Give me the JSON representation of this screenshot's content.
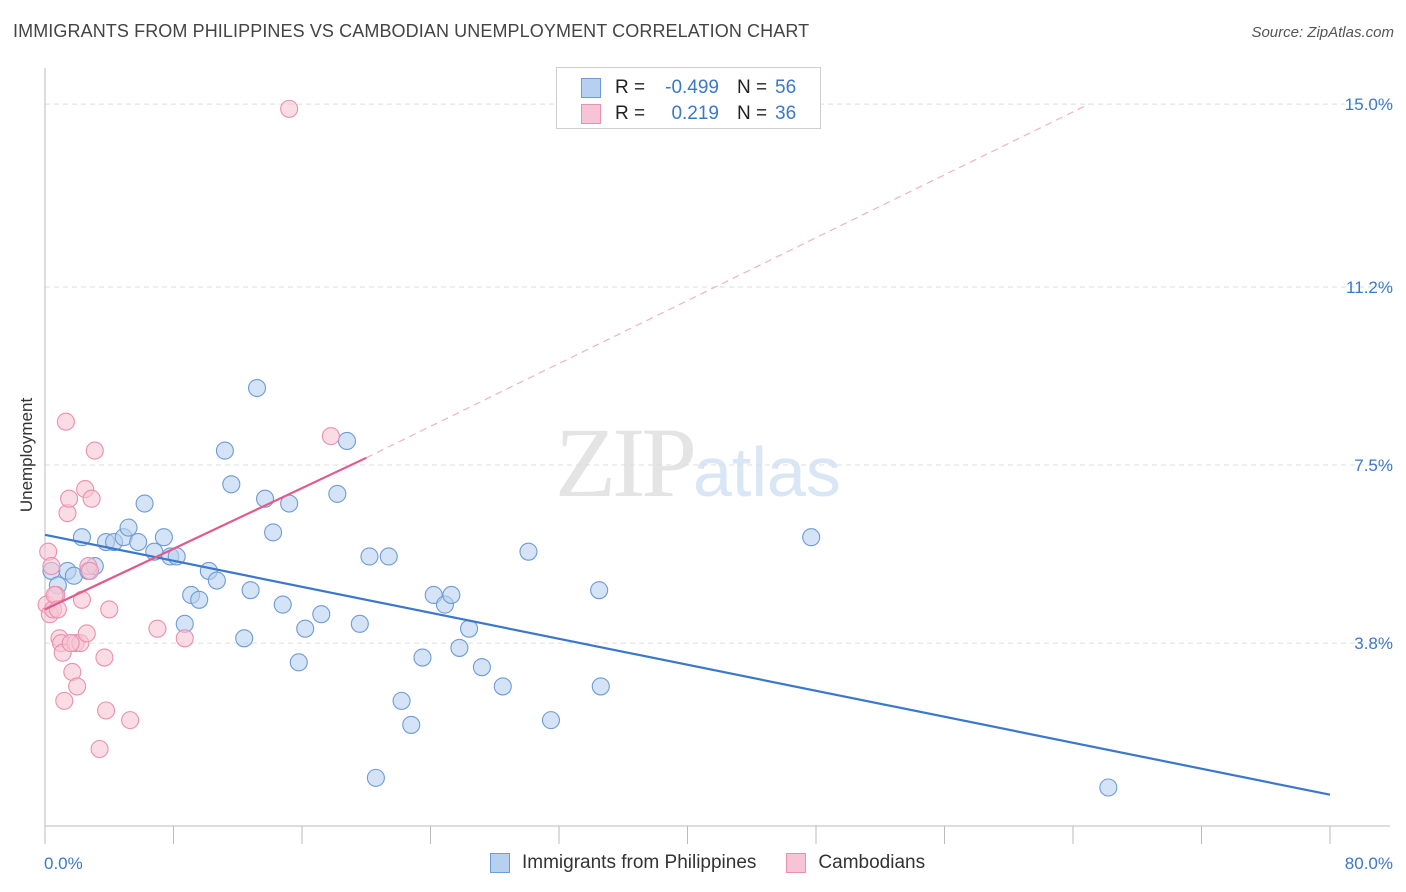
{
  "title": "IMMIGRANTS FROM PHILIPPINES VS CAMBODIAN UNEMPLOYMENT CORRELATION CHART",
  "source": "Source: ZipAtlas.com",
  "watermark": {
    "zip": "ZIP",
    "atlas": "atlas"
  },
  "colors": {
    "blue": "#3b78c9",
    "blue_fill": "#b7d0ef",
    "blue_stroke": "#6d9bd8",
    "pink": "#e05a8c",
    "pink_fill": "#f6c4d4",
    "pink_stroke": "#eb8fae",
    "grid": "#dddddd",
    "tick_text": "#3b78c9"
  },
  "legend": {
    "rows": [
      {
        "r_label": "R =",
        "r_value": "-0.499",
        "n_label": "N =",
        "n_value": "56",
        "swatch": "blue"
      },
      {
        "r_label": "R =",
        "r_value": "0.219",
        "n_label": "N =",
        "n_value": "36",
        "swatch": "pink"
      }
    ]
  },
  "bottom_legend": [
    "Immigrants from Philippines",
    "Cambodians"
  ],
  "chart_data": {
    "type": "scatter",
    "title": "IMMIGRANTS FROM PHILIPPINES VS CAMBODIAN UNEMPLOYMENT CORRELATION CHART",
    "xlabel": "",
    "ylabel": "Unemployment",
    "xlim": [
      0,
      80
    ],
    "ylim": [
      0,
      15.5
    ],
    "x_tick_labels": [
      "0.0%",
      "80.0%"
    ],
    "y_ticks": [
      3.8,
      7.5,
      11.2,
      15.0
    ],
    "y_tick_labels": [
      "3.8%",
      "7.5%",
      "11.2%",
      "15.0%"
    ],
    "grid": true,
    "legend_position": "top-center",
    "series": [
      {
        "name": "Immigrants from Philippines",
        "color": "blue",
        "points": [
          [
            0.4,
            5.3
          ],
          [
            0.8,
            5.0
          ],
          [
            1.4,
            5.3
          ],
          [
            1.8,
            5.2
          ],
          [
            2.3,
            6.0
          ],
          [
            2.7,
            5.3
          ],
          [
            3.1,
            5.4
          ],
          [
            3.8,
            5.9
          ],
          [
            4.3,
            5.9
          ],
          [
            4.9,
            6.0
          ],
          [
            5.2,
            6.2
          ],
          [
            5.8,
            5.9
          ],
          [
            6.2,
            6.7
          ],
          [
            6.8,
            5.7
          ],
          [
            7.4,
            6.0
          ],
          [
            7.8,
            5.6
          ],
          [
            8.2,
            5.6
          ],
          [
            8.7,
            4.2
          ],
          [
            9.1,
            4.8
          ],
          [
            9.6,
            4.7
          ],
          [
            10.2,
            5.3
          ],
          [
            10.7,
            5.1
          ],
          [
            11.2,
            7.8
          ],
          [
            11.6,
            7.1
          ],
          [
            12.4,
            3.9
          ],
          [
            12.8,
            4.9
          ],
          [
            13.2,
            9.1
          ],
          [
            13.7,
            6.8
          ],
          [
            14.2,
            6.1
          ],
          [
            14.8,
            4.6
          ],
          [
            15.2,
            6.7
          ],
          [
            15.8,
            3.4
          ],
          [
            16.2,
            4.1
          ],
          [
            17.2,
            4.4
          ],
          [
            18.2,
            6.9
          ],
          [
            18.8,
            8.0
          ],
          [
            19.6,
            4.2
          ],
          [
            20.2,
            5.6
          ],
          [
            21.4,
            5.6
          ],
          [
            20.6,
            1.0
          ],
          [
            22.2,
            2.6
          ],
          [
            22.8,
            2.1
          ],
          [
            23.5,
            3.5
          ],
          [
            24.2,
            4.8
          ],
          [
            24.9,
            4.6
          ],
          [
            25.3,
            4.8
          ],
          [
            25.8,
            3.7
          ],
          [
            26.4,
            4.1
          ],
          [
            27.2,
            3.3
          ],
          [
            28.5,
            2.9
          ],
          [
            30.1,
            5.7
          ],
          [
            31.5,
            2.2
          ],
          [
            34.5,
            4.9
          ],
          [
            34.6,
            2.9
          ],
          [
            47.7,
            6.0
          ],
          [
            66.2,
            0.8
          ]
        ],
        "trend": {
          "x0": 0,
          "y0": 6.05,
          "x1": 80,
          "y1": 0.65
        }
      },
      {
        "name": "Cambodians",
        "color": "pink",
        "points": [
          [
            0.1,
            4.6
          ],
          [
            0.3,
            4.4
          ],
          [
            0.5,
            4.5
          ],
          [
            0.7,
            4.8
          ],
          [
            0.9,
            3.9
          ],
          [
            1.0,
            3.8
          ],
          [
            1.1,
            3.6
          ],
          [
            1.2,
            2.6
          ],
          [
            1.3,
            8.4
          ],
          [
            1.4,
            6.5
          ],
          [
            1.5,
            6.8
          ],
          [
            1.7,
            3.2
          ],
          [
            1.9,
            3.8
          ],
          [
            2.0,
            2.9
          ],
          [
            2.2,
            3.8
          ],
          [
            2.3,
            4.7
          ],
          [
            2.5,
            7.0
          ],
          [
            2.6,
            4.0
          ],
          [
            2.7,
            5.4
          ],
          [
            2.8,
            5.3
          ],
          [
            2.9,
            6.8
          ],
          [
            3.1,
            7.8
          ],
          [
            3.4,
            1.6
          ],
          [
            3.7,
            3.5
          ],
          [
            3.8,
            2.4
          ],
          [
            4.0,
            4.5
          ],
          [
            5.3,
            2.2
          ],
          [
            7.0,
            4.1
          ],
          [
            8.7,
            3.9
          ],
          [
            15.2,
            14.9
          ],
          [
            17.8,
            8.1
          ],
          [
            0.2,
            5.7
          ],
          [
            0.4,
            5.4
          ],
          [
            0.6,
            4.8
          ],
          [
            0.8,
            4.5
          ],
          [
            1.6,
            3.8
          ]
        ],
        "trend": {
          "x0": 0,
          "y0": 4.5,
          "x1": 20,
          "y1": 7.65
        },
        "trend_extended": {
          "x0": 20,
          "y0": 7.65,
          "x1": 65,
          "y1": 15.0
        }
      }
    ]
  }
}
